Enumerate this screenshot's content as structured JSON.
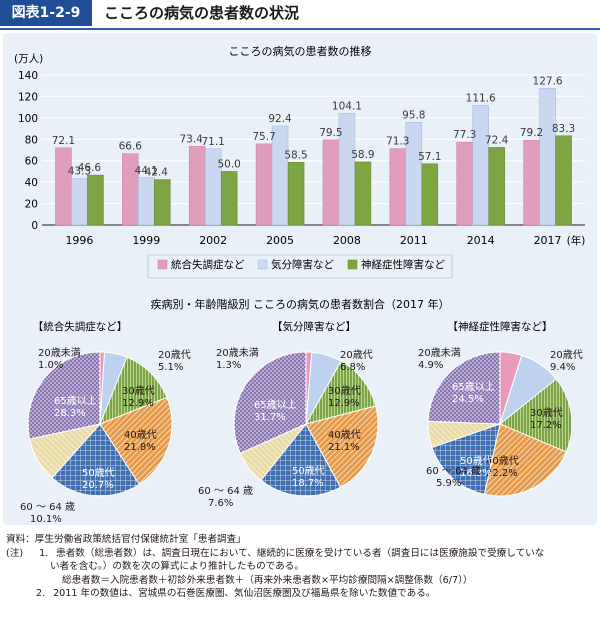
{
  "figure": {
    "label": "図表1-2-9",
    "title": "こころの病気の患者数の状況"
  },
  "colors": {
    "pink": "#df9fbc",
    "lightblue": "#c9d8f0",
    "green": "#7da543",
    "purple": "#8a74b6",
    "orange": "#e69b4a",
    "blue": "#3f6fb0",
    "beige": "#eadcaa",
    "pinkpie": "#e89abb",
    "lightbluepie": "#bcd2ee",
    "greenpie": "#7aa447"
  },
  "chart_data": [
    {
      "type": "bar",
      "title": "こころの病気の患者数の推移",
      "ylabel": "(万人)",
      "xunit": "(年)",
      "categories": [
        "1996",
        "1999",
        "2002",
        "2005",
        "2008",
        "2011",
        "2014",
        "2017"
      ],
      "ylim": [
        0,
        140
      ],
      "yticks": [
        "0",
        "20",
        "40",
        "60",
        "80",
        "100",
        "120",
        "140"
      ],
      "series": [
        {
          "name": "統合失調症など",
          "values": [
            72.1,
            66.6,
            73.4,
            75.7,
            79.5,
            71.3,
            77.3,
            79.2
          ]
        },
        {
          "name": "気分障害など",
          "values": [
            43.3,
            44.1,
            71.1,
            92.4,
            104.1,
            95.8,
            111.6,
            127.6
          ]
        },
        {
          "name": "神経症性障害など",
          "values": [
            46.6,
            42.4,
            50.0,
            58.5,
            58.9,
            57.1,
            72.4,
            83.3
          ]
        }
      ],
      "value_labels": [
        [
          "72.1",
          "66.6",
          "73.4",
          "75.7",
          "79.5",
          "71.3",
          "77.3",
          "79.2"
        ],
        [
          "43.3",
          "44.1",
          "71.1",
          "92.4",
          "104.1",
          "95.8",
          "111.6",
          "127.6"
        ],
        [
          "46.6",
          "42.4",
          "50.0",
          "58.5",
          "58.9",
          "57.1",
          "72.4",
          "83.3"
        ]
      ],
      "legend_position": "bottom",
      "grid": true
    },
    {
      "type": "pie",
      "section_title": "疾病別・年齢階級別 こころの病気の患者数割合（2017 年）",
      "title": "【統合失調症など】",
      "slices": [
        {
          "label": "20歳未満",
          "value": 1.0,
          "text": "1.0%"
        },
        {
          "label": "20歳代",
          "value": 5.1,
          "text": "5.1%"
        },
        {
          "label": "30歳代",
          "value": 12.9,
          "text": "12.9%"
        },
        {
          "label": "40歳代",
          "value": 21.8,
          "text": "21.8%"
        },
        {
          "label": "50歳代",
          "value": 20.7,
          "text": "20.7%"
        },
        {
          "label": "60 ～ 64 歳",
          "value": 10.1,
          "text": "10.1%"
        },
        {
          "label": "65歳以上",
          "value": 28.3,
          "text": "28.3%"
        }
      ]
    },
    {
      "type": "pie",
      "title": "【気分障害など】",
      "slices": [
        {
          "label": "20歳未満",
          "value": 1.3,
          "text": "1.3%"
        },
        {
          "label": "20歳代",
          "value": 6.8,
          "text": "6.8%"
        },
        {
          "label": "30歳代",
          "value": 12.9,
          "text": "12.9%"
        },
        {
          "label": "40歳代",
          "value": 21.1,
          "text": "21.1%"
        },
        {
          "label": "50歳代",
          "value": 18.7,
          "text": "18.7%"
        },
        {
          "label": "60 ～ 64 歳",
          "value": 7.6,
          "text": "7.6%"
        },
        {
          "label": "65歳以上",
          "value": 31.7,
          "text": "31.7%"
        }
      ]
    },
    {
      "type": "pie",
      "title": "【神経症性障害など】",
      "slices": [
        {
          "label": "20歳未満",
          "value": 4.9,
          "text": "4.9%"
        },
        {
          "label": "20歳代",
          "value": 9.4,
          "text": "9.4%"
        },
        {
          "label": "30歳代",
          "value": 17.2,
          "text": "17.2%"
        },
        {
          "label": "40歳代",
          "value": 22.2,
          "text": "22.2%"
        },
        {
          "label": "50歳代",
          "value": 16.3,
          "text": "16.3%"
        },
        {
          "label": "60 ～ 64 歳",
          "value": 5.9,
          "text": "5.9%"
        },
        {
          "label": "65歳以上",
          "value": 24.5,
          "text": "24.5%"
        }
      ]
    }
  ],
  "notes": {
    "source": "資料：厚生労働省政策統括官付保健統計室「患者調査」",
    "note_label": "(注)",
    "n1_num": "1.",
    "n1_line1": "患者数（総患者数）は、調査日現在において、継続的に医療を受けている者（調査日には医療施設で受療していな",
    "n1_line2": "い者を含む。）の数を次の算式により推計したものである。",
    "n1_line3": "総患者数＝入院患者数＋初診外来患者数＋（再来外来患者数×平均診療間隔×調整係数（6/7））",
    "n2_num": "2.",
    "n2_text": "2011 年の数値は、宮城県の石巻医療圏、気仙沼医療圏及び福島県を除いた数値である。"
  }
}
